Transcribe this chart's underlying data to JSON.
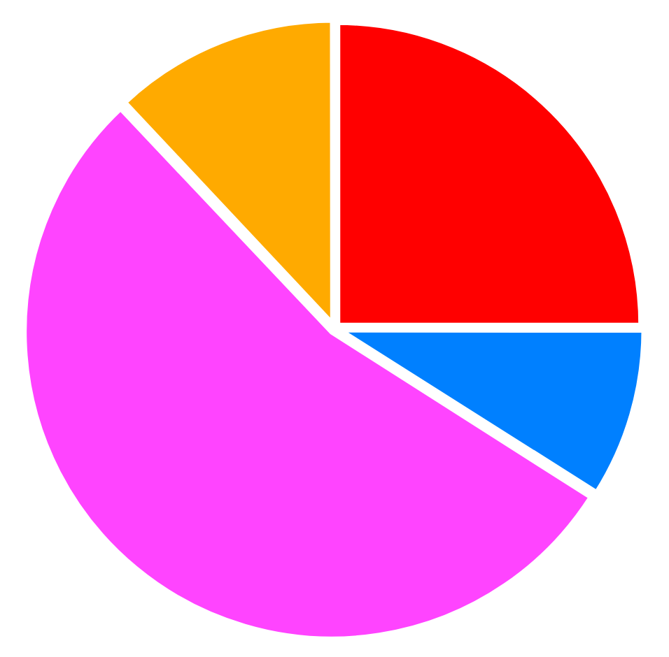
{
  "chart_data": {
    "type": "pie",
    "categories": [
      null,
      null,
      null,
      null
    ],
    "values": [
      25,
      9,
      54,
      12
    ],
    "colors": [
      "#ff0000",
      "#0080ff",
      "#ff44ff",
      "#ffaa00"
    ]
  }
}
